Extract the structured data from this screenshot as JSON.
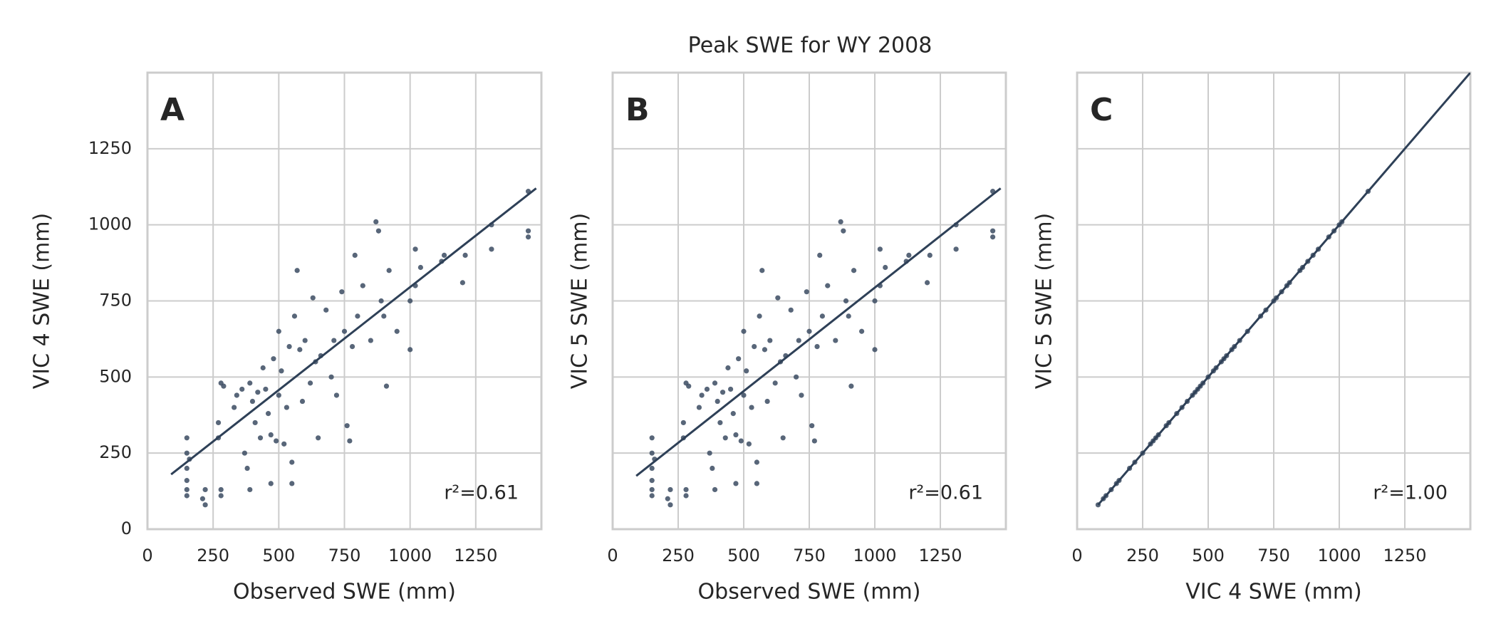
{
  "title": "Peak SWE for WY 2008",
  "chart_data": [
    {
      "type": "scatter",
      "label": "A",
      "xlabel": "Observed SWE (mm)",
      "ylabel": "VIC 4 SWE (mm)",
      "annotation": "r²=0.61",
      "color": "#3b4b61",
      "line_color": "#2e4057",
      "grid": true,
      "show_yticklabels": true,
      "xlim": [
        0,
        1500
      ],
      "ylim": [
        0,
        1500
      ],
      "xticks": [
        0,
        250,
        500,
        750,
        1000,
        1250
      ],
      "yticks": [
        0,
        250,
        500,
        750,
        1000,
        1250
      ],
      "fit": {
        "x": [
          90,
          1480
        ],
        "y": [
          180,
          1120
        ]
      },
      "x": [
        150,
        150,
        150,
        150,
        150,
        150,
        160,
        210,
        220,
        220,
        270,
        270,
        280,
        280,
        280,
        290,
        330,
        340,
        360,
        370,
        380,
        390,
        390,
        400,
        410,
        420,
        430,
        440,
        450,
        460,
        470,
        470,
        480,
        490,
        500,
        500,
        510,
        520,
        530,
        540,
        550,
        550,
        560,
        570,
        580,
        590,
        600,
        620,
        630,
        640,
        650,
        660,
        680,
        700,
        710,
        720,
        740,
        750,
        760,
        770,
        780,
        790,
        800,
        820,
        850,
        870,
        880,
        890,
        900,
        910,
        920,
        950,
        1000,
        1000,
        1020,
        1020,
        1040,
        1120,
        1130,
        1200,
        1210,
        1310,
        1310,
        1450,
        1450,
        1450
      ],
      "y": [
        300,
        250,
        200,
        160,
        130,
        110,
        230,
        100,
        80,
        130,
        350,
        300,
        130,
        110,
        480,
        470,
        400,
        440,
        460,
        250,
        200,
        130,
        480,
        420,
        350,
        450,
        300,
        530,
        460,
        380,
        150,
        310,
        560,
        290,
        440,
        650,
        520,
        280,
        400,
        600,
        220,
        150,
        700,
        850,
        590,
        420,
        620,
        480,
        760,
        550,
        300,
        570,
        720,
        500,
        620,
        440,
        780,
        650,
        340,
        290,
        600,
        900,
        700,
        800,
        620,
        1010,
        980,
        750,
        700,
        470,
        850,
        650,
        750,
        590,
        920,
        800,
        860,
        880,
        900,
        810,
        900,
        1000,
        920,
        1110,
        980,
        960
      ]
    },
    {
      "type": "scatter",
      "label": "B",
      "xlabel": "Observed SWE (mm)",
      "ylabel": "VIC 5 SWE (mm)",
      "annotation": "r²=0.61",
      "color": "#3b4b61",
      "line_color": "#2e4057",
      "grid": true,
      "show_yticklabels": false,
      "xlim": [
        0,
        1500
      ],
      "ylim": [
        0,
        1500
      ],
      "xticks": [
        0,
        250,
        500,
        750,
        1000,
        1250
      ],
      "yticks": [
        0,
        250,
        500,
        750,
        1000,
        1250
      ],
      "fit": {
        "x": [
          90,
          1480
        ],
        "y": [
          175,
          1120
        ]
      },
      "x": [
        150,
        150,
        150,
        150,
        150,
        150,
        160,
        210,
        220,
        220,
        270,
        270,
        280,
        280,
        280,
        290,
        330,
        340,
        360,
        370,
        380,
        390,
        390,
        400,
        410,
        420,
        430,
        440,
        450,
        460,
        470,
        470,
        480,
        490,
        500,
        500,
        510,
        520,
        530,
        540,
        550,
        550,
        560,
        570,
        580,
        590,
        600,
        620,
        630,
        640,
        650,
        660,
        680,
        700,
        710,
        720,
        740,
        750,
        760,
        770,
        780,
        790,
        800,
        820,
        850,
        870,
        880,
        890,
        900,
        910,
        920,
        950,
        1000,
        1000,
        1020,
        1020,
        1040,
        1120,
        1130,
        1200,
        1210,
        1310,
        1310,
        1450,
        1450,
        1450
      ],
      "y": [
        300,
        250,
        200,
        160,
        130,
        110,
        230,
        100,
        80,
        130,
        350,
        300,
        130,
        110,
        480,
        470,
        400,
        440,
        460,
        250,
        200,
        130,
        480,
        420,
        350,
        450,
        300,
        530,
        460,
        380,
        150,
        310,
        560,
        290,
        440,
        650,
        520,
        280,
        400,
        600,
        220,
        150,
        700,
        850,
        590,
        420,
        620,
        480,
        760,
        550,
        300,
        570,
        720,
        500,
        620,
        440,
        780,
        650,
        340,
        290,
        600,
        900,
        700,
        800,
        620,
        1010,
        980,
        750,
        700,
        470,
        850,
        650,
        750,
        590,
        920,
        800,
        860,
        880,
        900,
        810,
        900,
        1000,
        920,
        1110,
        980,
        960
      ]
    },
    {
      "type": "scatter",
      "label": "C",
      "xlabel": "VIC 4 SWE (mm)",
      "ylabel": "VIC 5 SWE (mm)",
      "annotation": "r²=1.00",
      "color": "#3b4b61",
      "line_color": "#2e4057",
      "grid": true,
      "show_yticklabels": false,
      "xlim": [
        0,
        1500
      ],
      "ylim": [
        0,
        1500
      ],
      "xticks": [
        0,
        250,
        500,
        750,
        1000,
        1250
      ],
      "yticks": [
        0,
        250,
        500,
        750,
        1000,
        1250
      ],
      "fit": {
        "x": [
          80,
          1500
        ],
        "y": [
          80,
          1500
        ]
      },
      "x": [
        80,
        100,
        110,
        130,
        150,
        160,
        200,
        220,
        250,
        280,
        290,
        300,
        310,
        340,
        350,
        380,
        400,
        420,
        440,
        450,
        460,
        470,
        480,
        500,
        520,
        530,
        550,
        560,
        570,
        590,
        600,
        620,
        650,
        700,
        720,
        750,
        760,
        780,
        800,
        810,
        850,
        860,
        880,
        900,
        920,
        960,
        980,
        1000,
        1010,
        1110
      ],
      "y": [
        80,
        100,
        110,
        130,
        150,
        160,
        200,
        220,
        250,
        280,
        290,
        300,
        310,
        340,
        350,
        380,
        400,
        420,
        440,
        450,
        460,
        470,
        480,
        500,
        520,
        530,
        550,
        560,
        570,
        590,
        600,
        620,
        650,
        700,
        720,
        750,
        760,
        780,
        800,
        810,
        850,
        860,
        880,
        900,
        920,
        960,
        980,
        1000,
        1010,
        1110
      ]
    }
  ]
}
